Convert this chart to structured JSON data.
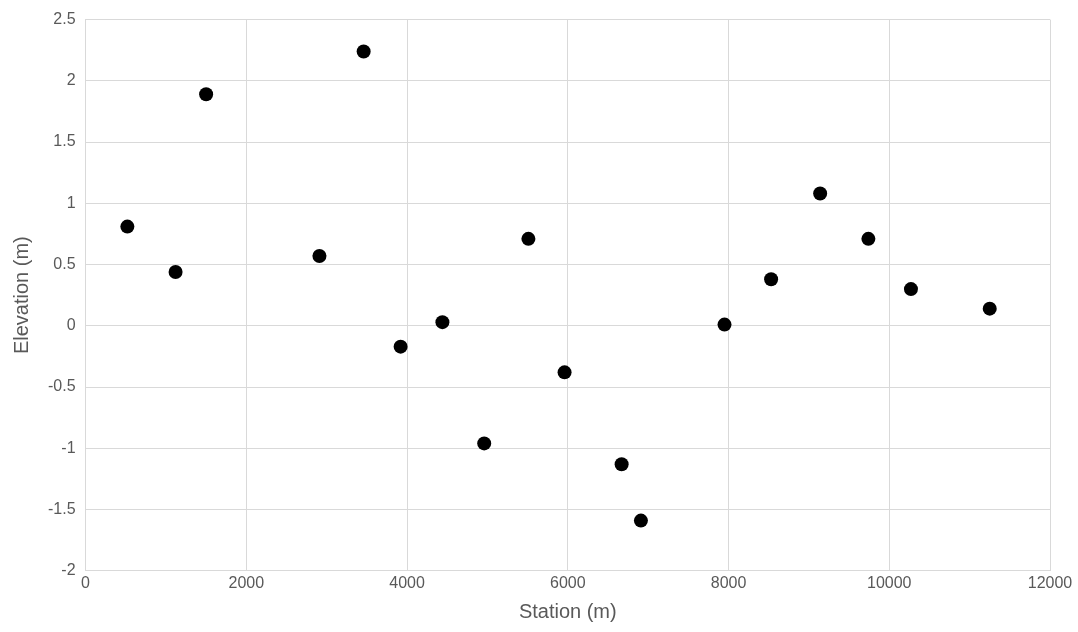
{
  "chart_data": {
    "type": "scatter",
    "xlabel": "Station (m)",
    "ylabel": "Elevation (m)",
    "x": [
      520,
      1120,
      1500,
      2910,
      3460,
      3920,
      4440,
      4960,
      5510,
      5960,
      6670,
      6910,
      7950,
      8530,
      9140,
      9740,
      10270,
      11250
    ],
    "series": [
      {
        "color": "#000000",
        "values": [
          0.81,
          0.44,
          1.89,
          0.57,
          2.24,
          -0.17,
          0.03,
          -0.96,
          0.71,
          -0.38,
          -1.13,
          -1.59,
          0.01,
          0.38,
          1.08,
          0.71,
          0.3,
          0.14
        ]
      }
    ],
    "xlim": [
      0,
      12000
    ],
    "xticks": [
      0,
      2000,
      4000,
      6000,
      8000,
      10000,
      12000
    ],
    "ylim": [
      -2,
      2.5
    ],
    "yticks": [
      -2,
      -1.5,
      -1,
      -0.5,
      0,
      0.5,
      1,
      1.5,
      2,
      2.5
    ],
    "grid": true,
    "marker": "circle"
  }
}
